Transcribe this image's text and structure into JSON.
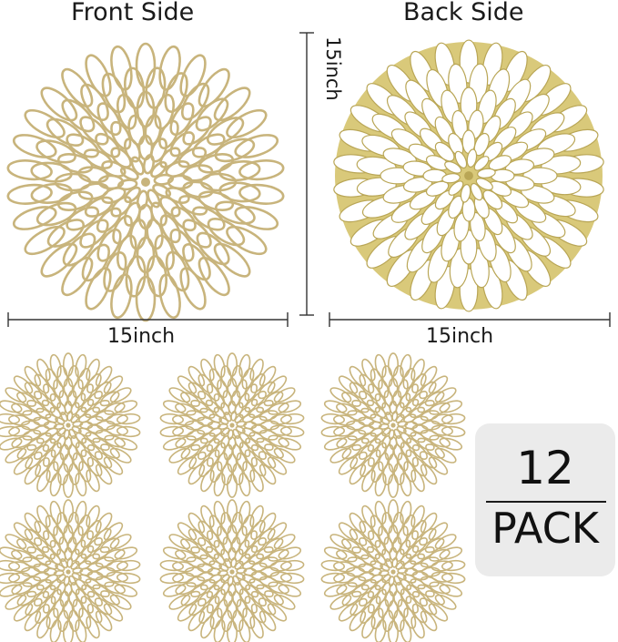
{
  "labels": {
    "front_side": "Front Side",
    "back_side": "Back Side",
    "height": "15inch",
    "front_width": "15inch",
    "back_width": "15inch"
  },
  "pack": {
    "count": "12",
    "word": "PACK"
  },
  "colors": {
    "front_gold": "#c8b47c",
    "front_highlight": "#efe3c2",
    "back_gold": "#d9c97a",
    "back_dark": "#b9a656",
    "badge_bg": "#ebebeb"
  }
}
